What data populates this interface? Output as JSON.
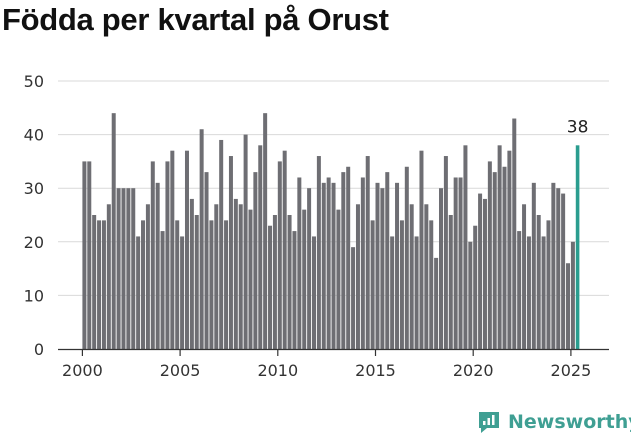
{
  "title": "Födda per kvartal på Orust",
  "brand": {
    "name": "Newsworthy",
    "icon": "newsworthy-logo-icon",
    "color": "#3f9f93"
  },
  "colors": {
    "bar": "#6e6e73",
    "highlight": "#2a9d8f",
    "grid": "#d9d9d9"
  },
  "chart_data": {
    "type": "bar",
    "title": "Födda per kvartal på Orust",
    "xlabel": "",
    "ylabel": "",
    "x_start": "2000 Q1",
    "periods": "quarterly",
    "values": [
      35,
      35,
      25,
      24,
      24,
      27,
      44,
      30,
      30,
      30,
      30,
      21,
      24,
      27,
      35,
      31,
      22,
      35,
      37,
      24,
      21,
      37,
      28,
      25,
      41,
      33,
      24,
      27,
      39,
      24,
      36,
      28,
      27,
      40,
      26,
      33,
      38,
      44,
      23,
      25,
      35,
      37,
      25,
      22,
      32,
      26,
      30,
      21,
      36,
      31,
      32,
      31,
      26,
      33,
      34,
      19,
      27,
      32,
      36,
      24,
      31,
      30,
      33,
      21,
      31,
      24,
      34,
      27,
      21,
      37,
      27,
      24,
      17,
      30,
      36,
      25,
      32,
      32,
      38,
      20,
      23,
      29,
      28,
      35,
      33,
      38,
      34,
      37,
      43,
      22,
      27,
      21,
      31,
      25,
      21,
      24,
      31,
      30,
      29,
      16,
      20,
      38
    ],
    "highlight": {
      "index": 101,
      "label": "38"
    },
    "ylim": [
      0,
      50
    ],
    "yticks": [
      0,
      10,
      20,
      30,
      40,
      50
    ],
    "xticks": [
      "2000",
      "2005",
      "2010",
      "2015",
      "2020",
      "2025"
    ],
    "grid": true
  }
}
